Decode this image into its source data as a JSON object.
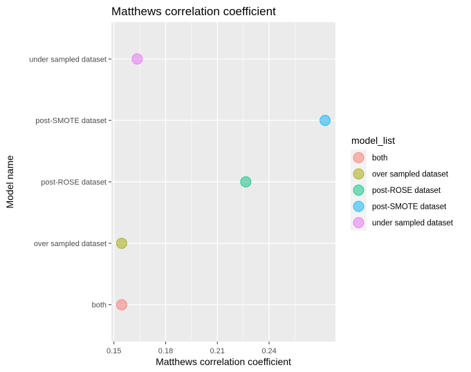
{
  "chart_data": {
    "type": "scatter",
    "title": "Matthews correlation coefficient",
    "xlabel": "Matthews correlation coefficient",
    "ylabel": "Model name",
    "xlim": [
      0.1485,
      0.2785
    ],
    "x_ticks": [
      0.15,
      0.18,
      0.21,
      0.24
    ],
    "x_tick_labels": [
      "0.15",
      "0.18",
      "0.21",
      "0.24"
    ],
    "categories": [
      "both",
      "over sampled dataset",
      "post-ROSE dataset",
      "post-SMOTE dataset",
      "under sampled dataset"
    ],
    "points": [
      {
        "category": "both",
        "x": 0.1545,
        "color": "#F8766D"
      },
      {
        "category": "over sampled dataset",
        "x": 0.1545,
        "color": "#A3A500"
      },
      {
        "category": "post-ROSE dataset",
        "x": 0.2265,
        "color": "#00BF7D"
      },
      {
        "category": "post-SMOTE dataset",
        "x": 0.2725,
        "color": "#00B0F6"
      },
      {
        "category": "under sampled dataset",
        "x": 0.1635,
        "color": "#E76BF3"
      }
    ],
    "grid": true,
    "panel_background": "#EBEBEB",
    "point_opacity": 0.5,
    "legend": {
      "title": "model_list",
      "position": "right",
      "entries": [
        {
          "label": "both",
          "color": "#F8766D"
        },
        {
          "label": "over sampled dataset",
          "color": "#A3A500"
        },
        {
          "label": "post-ROSE dataset",
          "color": "#00BF7D"
        },
        {
          "label": "post-SMOTE dataset",
          "color": "#00B0F6"
        },
        {
          "label": "under sampled dataset",
          "color": "#E76BF3"
        }
      ]
    }
  }
}
